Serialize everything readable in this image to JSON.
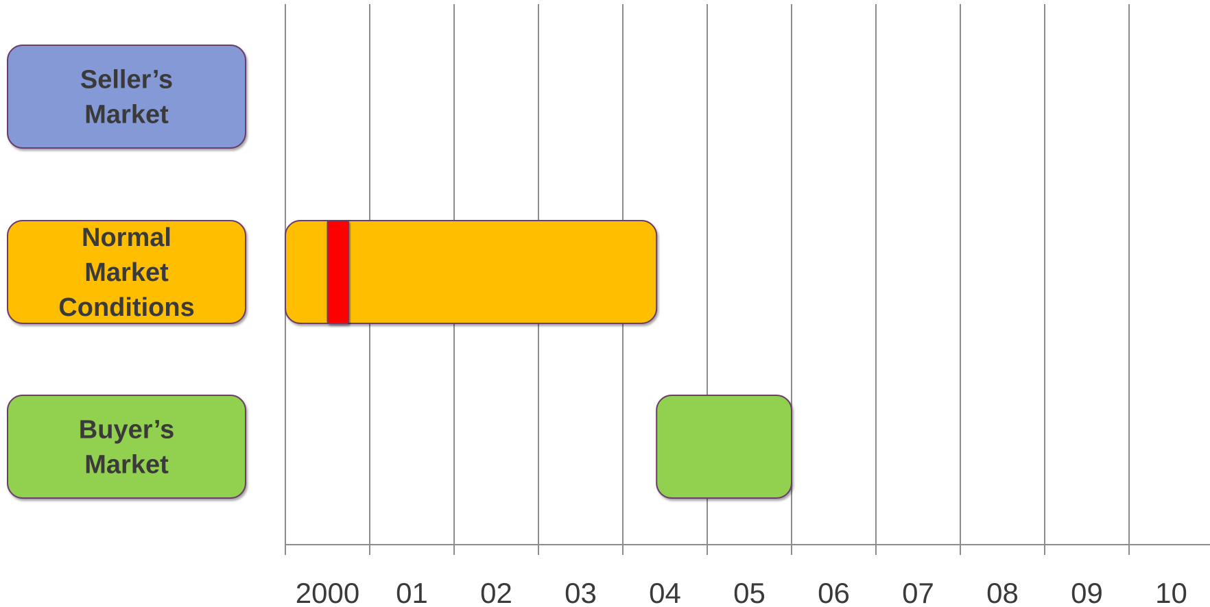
{
  "chart_data": {
    "type": "timeline",
    "x_ticks": [
      "2000",
      "01",
      "02",
      "03",
      "04",
      "05",
      "06",
      "07",
      "08",
      "09",
      "10"
    ],
    "xlim": [
      2000,
      2011
    ],
    "categories": [
      {
        "label_lines": [
          "Seller’s",
          "Market"
        ],
        "color": "#8499d6"
      },
      {
        "label_lines": [
          "Normal",
          "Market",
          "Conditions"
        ],
        "color": "#ffbf00"
      },
      {
        "label_lines": [
          "Buyer’s",
          "Market"
        ],
        "color": "#92d050"
      }
    ],
    "bars": [
      {
        "category_index": 1,
        "start": 2000.0,
        "end": 2004.4,
        "color": "#ffbf00"
      },
      {
        "category_index": 1,
        "start": 2000.5,
        "end": 2000.75,
        "color": "#ff0000"
      },
      {
        "category_index": 2,
        "start": 2004.4,
        "end": 2006.0,
        "color": "#92d050"
      }
    ],
    "border_color": "#6b3d6b",
    "gridline_color": "#8c8c8c",
    "grid": true
  }
}
